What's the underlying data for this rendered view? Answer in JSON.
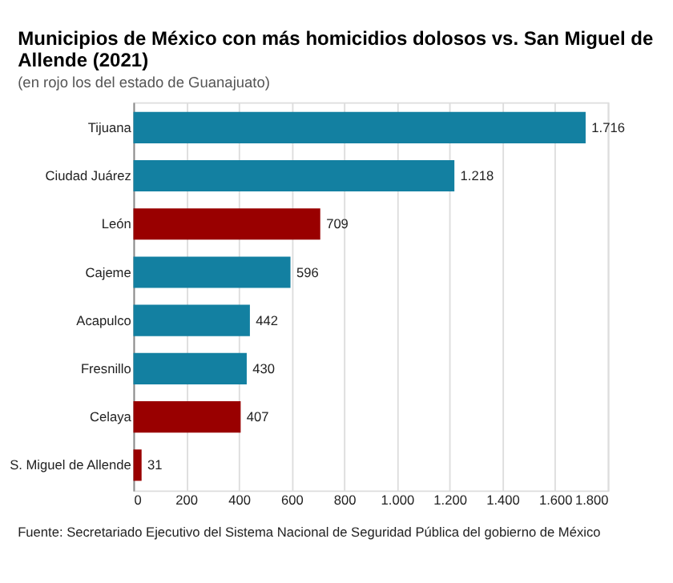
{
  "chart_data": {
    "type": "bar",
    "orientation": "horizontal",
    "title": "Municipios de México con más homicidios dolosos vs. San Miguel de Allende (2021)",
    "subtitle": "(en rojo los del estado de Guanajuato)",
    "categories": [
      "Tijuana",
      "Ciudad Juárez",
      "León",
      "Cajeme",
      "Acapulco",
      "Fresnillo",
      "Celaya",
      "S. Miguel de Allende"
    ],
    "values": [
      1716,
      1218,
      709,
      596,
      442,
      430,
      407,
      31
    ],
    "colors": [
      "#1380a1",
      "#1380a1",
      "#990000",
      "#1380a1",
      "#1380a1",
      "#1380a1",
      "#990000",
      "#990000"
    ],
    "value_labels": [
      "1.716",
      "1.218",
      "709",
      "596",
      "442",
      "430",
      "407",
      "31"
    ],
    "xlim": [
      0,
      1800
    ],
    "xticks": [
      0,
      200,
      400,
      600,
      800,
      {
        "value": 1000,
        "label": "1.000"
      },
      {
        "value": 1200,
        "label": "1.200"
      },
      {
        "value": 1400,
        "label": "1.400"
      },
      {
        "value": 1600,
        "label": "1.600"
      },
      {
        "value": 1800,
        "label": "1.800"
      }
    ],
    "grid": "x",
    "annotations": [
      "Fuente: Secretariado Ejecutivo del Sistema Nacional de Seguridad Pública del gobierno de México"
    ]
  }
}
